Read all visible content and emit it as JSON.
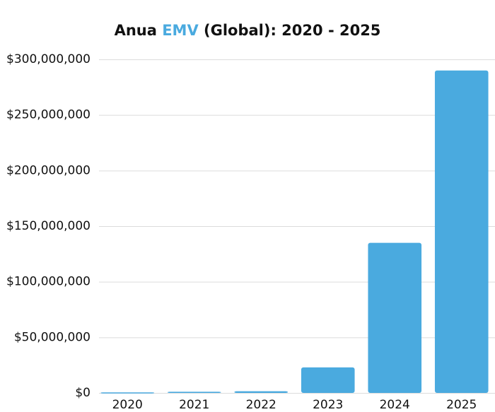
{
  "chart_data": {
    "type": "bar",
    "title": [
      "Anua ",
      "EMV",
      " (Global): 2020 - 2025"
    ],
    "title_highlight": 1,
    "title_highlight_color": "#4aaadf",
    "categories": [
      "2020",
      "2021",
      "2022",
      "2023",
      "2024",
      "2025"
    ],
    "values": [
      500000,
      1000000,
      1500000,
      23000000,
      135000000,
      290000000
    ],
    "color": "#4aaadf",
    "ylim": [
      0,
      300000000
    ],
    "yticks": [
      {
        "value": 0,
        "label": "$0"
      },
      {
        "value": 50000000,
        "label": "$50,000,000"
      },
      {
        "value": 100000000,
        "label": "$100,000,000"
      },
      {
        "value": 150000000,
        "label": "$150,000,000"
      },
      {
        "value": 200000000,
        "label": "$200,000,000"
      },
      {
        "value": 250000000,
        "label": "$250,000,000"
      },
      {
        "value": 300000000,
        "label": "$300,000,000"
      }
    ],
    "grid": true
  }
}
